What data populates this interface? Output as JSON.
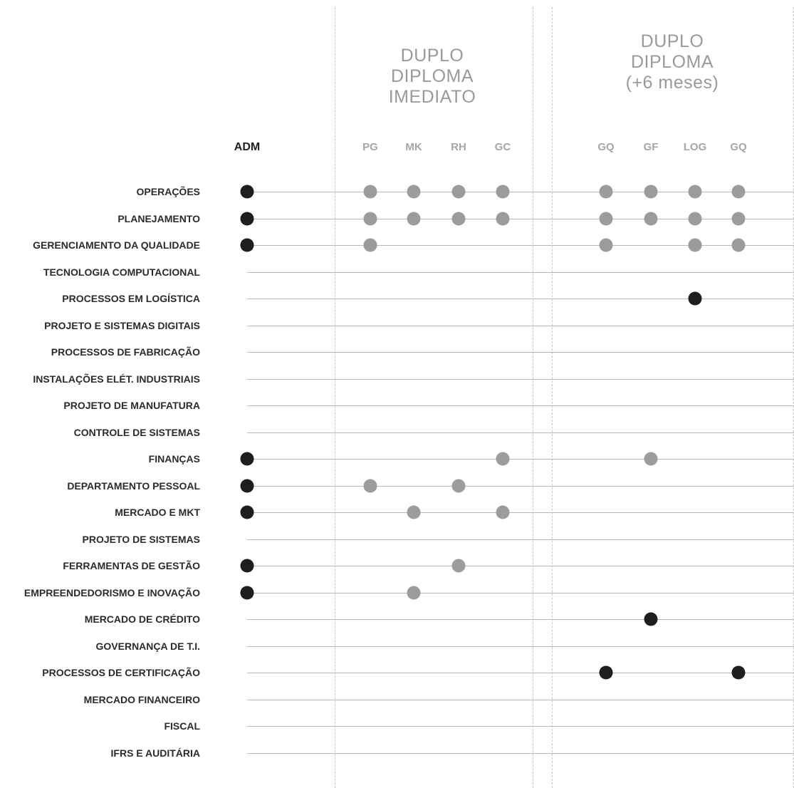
{
  "groups": [
    {
      "lines": [
        "DUPLO",
        "DIPLOMA",
        "IMEDIATO"
      ]
    },
    {
      "lines": [
        "DUPLO",
        "DIPLOMA",
        "(+6 meses)"
      ]
    }
  ],
  "columns": [
    {
      "code": "ADM",
      "role": "main"
    },
    {
      "code": "PG",
      "group": 0
    },
    {
      "code": "MK",
      "group": 0
    },
    {
      "code": "RH",
      "group": 0
    },
    {
      "code": "GC",
      "group": 0
    },
    {
      "code": "GQ",
      "group": 1
    },
    {
      "code": "GF",
      "group": 1
    },
    {
      "code": "LOG",
      "group": 1
    },
    {
      "code": "GQ",
      "group": 1
    }
  ],
  "rows": [
    {
      "label": "OPERAÇÕES",
      "marks": {
        "ADM": "primary",
        "PG": "secondary",
        "MK": "secondary",
        "RH": "secondary",
        "GC": "secondary",
        "GQ1": "secondary",
        "GF": "secondary",
        "LOG": "secondary",
        "GQ2": "secondary"
      }
    },
    {
      "label": "PLANEJAMENTO",
      "marks": {
        "ADM": "primary",
        "PG": "secondary",
        "MK": "secondary",
        "RH": "secondary",
        "GC": "secondary",
        "GQ1": "secondary",
        "GF": "secondary",
        "LOG": "secondary",
        "GQ2": "secondary"
      }
    },
    {
      "label": "GERENCIAMENTO DA QUALIDADE",
      "marks": {
        "ADM": "primary",
        "PG": "secondary",
        "GQ1": "secondary",
        "LOG": "secondary",
        "GQ2": "secondary"
      }
    },
    {
      "label": "TECNOLOGIA COMPUTACIONAL",
      "marks": {}
    },
    {
      "label": "PROCESSOS EM LOGÍSTICA",
      "marks": {
        "LOG": "primary"
      }
    },
    {
      "label": "PROJETO E SISTEMAS DIGITAIS",
      "marks": {}
    },
    {
      "label": "PROCESSOS DE FABRICAÇÃO",
      "marks": {}
    },
    {
      "label": "INSTALAÇÕES ELÉT. INDUSTRIAIS",
      "marks": {}
    },
    {
      "label": "PROJETO DE MANUFATURA",
      "marks": {}
    },
    {
      "label": "CONTROLE DE SISTEMAS",
      "marks": {}
    },
    {
      "label": "FINANÇAS",
      "marks": {
        "ADM": "primary",
        "GC": "secondary",
        "GF": "secondary"
      }
    },
    {
      "label": "DEPARTAMENTO PESSOAL",
      "marks": {
        "ADM": "primary",
        "PG": "secondary",
        "RH": "secondary"
      }
    },
    {
      "label": "MERCADO E MKT",
      "marks": {
        "ADM": "primary",
        "MK": "secondary",
        "GC": "secondary"
      }
    },
    {
      "label": "PROJETO DE SISTEMAS",
      "marks": {}
    },
    {
      "label": "FERRAMENTAS DE GESTÃO",
      "marks": {
        "ADM": "primary",
        "RH": "secondary"
      }
    },
    {
      "label": "EMPREENDEDORISMO E INOVAÇÃO",
      "marks": {
        "ADM": "primary",
        "MK": "secondary"
      }
    },
    {
      "label": "MERCADO DE CRÉDITO",
      "marks": {
        "GF": "primary"
      }
    },
    {
      "label": "GOVERNANÇA DE T.I.",
      "marks": {}
    },
    {
      "label": "PROCESSOS DE CERTIFICAÇÃO",
      "marks": {
        "GQ1": "primary",
        "GQ2": "primary"
      }
    },
    {
      "label": "MERCADO FINANCEIRO",
      "marks": {}
    },
    {
      "label": "FISCAL",
      "marks": {}
    },
    {
      "label": "IFRS E AUDITÁRIA",
      "marks": {}
    }
  ],
  "colors": {
    "primary_dot": "#1f1d1d",
    "secondary_dot": "#9c9c9c",
    "row_line": "#b8b8b8",
    "separator": "#c8c8c8",
    "group_title": "#9a9a9a"
  }
}
